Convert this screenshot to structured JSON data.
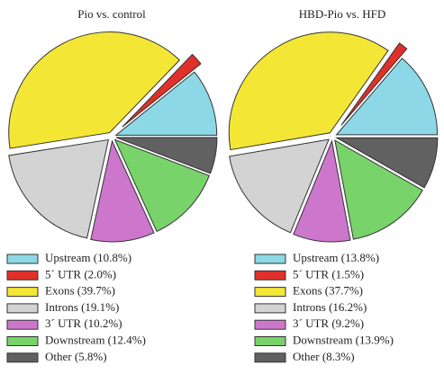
{
  "chart_data": [
    {
      "type": "pie",
      "title": "Pio vs. control",
      "categories": [
        "Upstream (10.8%)",
        "5´ UTR (2.0%)",
        "Exons (39.7%)",
        "Introns (19.1%)",
        "3´ UTR (10.2%)",
        "Downstream (12.4%)",
        "Other (5.8%)"
      ],
      "values": [
        10.8,
        2.0,
        39.7,
        19.1,
        10.2,
        12.4,
        5.8
      ],
      "colors": [
        "#8dd8e6",
        "#e0302a",
        "#f4e634",
        "#d3d3d3",
        "#cc77cc",
        "#78d36a",
        "#616161"
      ]
    },
    {
      "type": "pie",
      "title": "HBD-Pio vs. HFD",
      "categories": [
        "Upstream (13.8%)",
        "5´ UTR (1.5%)",
        "Exons (37.7%)",
        "Introns (16.2%)",
        "3´ UTR (9.2%)",
        "Downstream (13.9%)",
        "Other (8.3%)"
      ],
      "values": [
        13.8,
        1.5,
        37.7,
        16.2,
        9.2,
        13.9,
        8.3
      ],
      "colors": [
        "#8dd8e6",
        "#e0302a",
        "#f4e634",
        "#d3d3d3",
        "#cc77cc",
        "#78d36a",
        "#616161"
      ]
    }
  ]
}
